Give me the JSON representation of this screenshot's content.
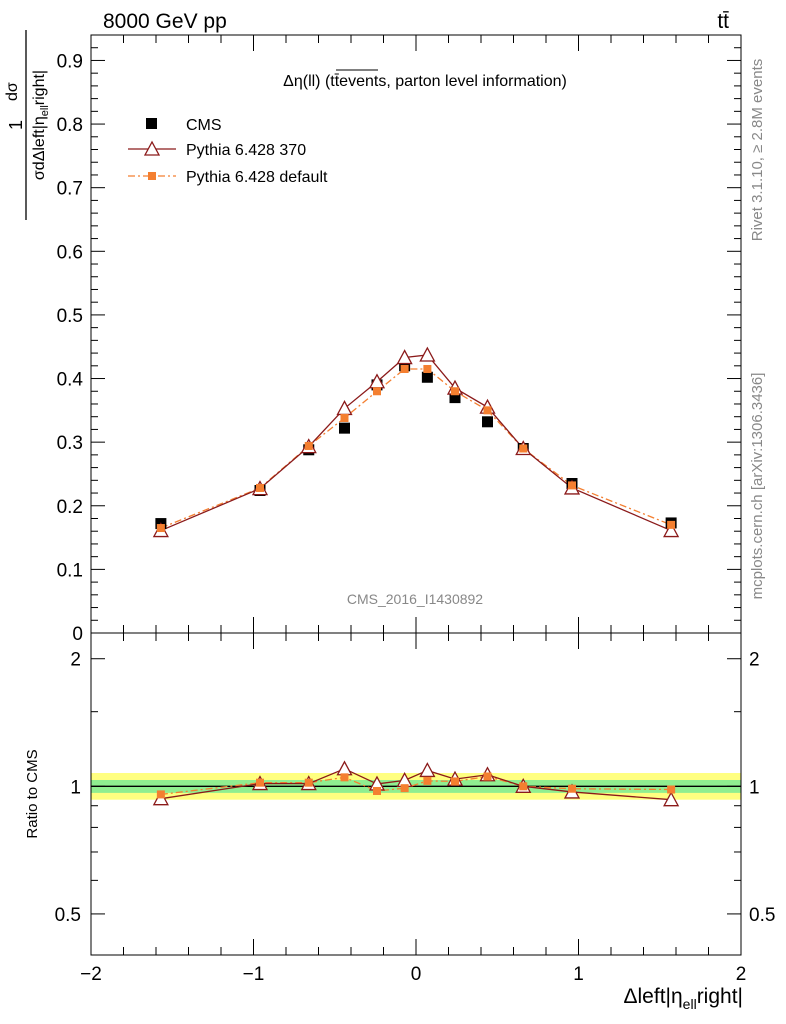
{
  "header": {
    "energy_label": "8000 GeV pp",
    "process_label": "tt̄"
  },
  "side_labels": {
    "rivet": "Rivet 3.1.10, ≥ 2.8M events",
    "mcplots": "mcplots.cern.ch [arXiv:1306.3436]"
  },
  "chart_data": [
    {
      "type": "scatter",
      "title": "Δη(ll) (tt̄events, parton level information)",
      "watermark": "CMS_2016_I1430892",
      "ylabel": "1/σ dσ/dΔleft|η_ell right|",
      "xlim": [
        -2.0,
        2.0
      ],
      "ylim": [
        0,
        0.94
      ],
      "xticks": [
        "−2",
        "−1",
        "0",
        "1",
        "2"
      ],
      "yticks": [
        "0",
        "0.1",
        "0.2",
        "0.3",
        "0.4",
        "0.5",
        "0.6",
        "0.7",
        "0.8",
        "0.9"
      ],
      "legend_position": "top-left",
      "x": [
        -1.57,
        -0.96,
        -0.66,
        -0.44,
        -0.24,
        -0.07,
        0.07,
        0.24,
        0.44,
        0.66,
        0.96,
        1.57
      ],
      "series": [
        {
          "name": "CMS",
          "color": "#000000",
          "marker": "square",
          "values": [
            0.172,
            0.224,
            0.288,
            0.322,
            0.39,
            0.42,
            0.402,
            0.37,
            0.332,
            0.29,
            0.235,
            0.173
          ]
        },
        {
          "name": "Pythia 6.428 370",
          "color": "#8b1a1a",
          "marker": "open-triangle",
          "values": [
            0.161,
            0.227,
            0.293,
            0.353,
            0.395,
            0.433,
            0.437,
            0.385,
            0.355,
            0.29,
            0.228,
            0.161
          ]
        },
        {
          "name": "Pythia 6.428 default",
          "color": "#f47f30",
          "marker": "small-square",
          "values": [
            0.165,
            0.228,
            0.294,
            0.338,
            0.38,
            0.415,
            0.415,
            0.38,
            0.35,
            0.29,
            0.232,
            0.17
          ]
        }
      ]
    },
    {
      "type": "line",
      "ylabel": "Ratio to CMS",
      "xlabel": "Δleft|η_ell right|",
      "xlim": [
        -2.0,
        2.0
      ],
      "ylim": [
        0.4,
        2.3
      ],
      "log_y": true,
      "xticks": [
        "−2",
        "−1",
        "0",
        "1",
        "2"
      ],
      "yticks": [
        "0.5",
        "1",
        "2"
      ],
      "band_colors": {
        "outer": "#ffff80",
        "inner": "#90ee90",
        "reference": "#000000"
      },
      "x": [
        -1.57,
        -0.96,
        -0.66,
        -0.44,
        -0.24,
        -0.07,
        0.07,
        0.24,
        0.44,
        0.66,
        0.96,
        1.57
      ],
      "series": [
        {
          "name": "Pythia 6.428 370",
          "color": "#8b1a1a",
          "values": [
            0.935,
            1.015,
            1.015,
            1.1,
            1.013,
            1.033,
            1.09,
            1.04,
            1.065,
            1.0,
            0.97,
            0.93
          ]
        },
        {
          "name": "Pythia 6.428 default",
          "color": "#f47f30",
          "values": [
            0.957,
            1.02,
            1.02,
            1.05,
            0.975,
            0.99,
            1.03,
            1.027,
            1.055,
            1.0,
            0.987,
            0.983
          ]
        }
      ]
    }
  ]
}
